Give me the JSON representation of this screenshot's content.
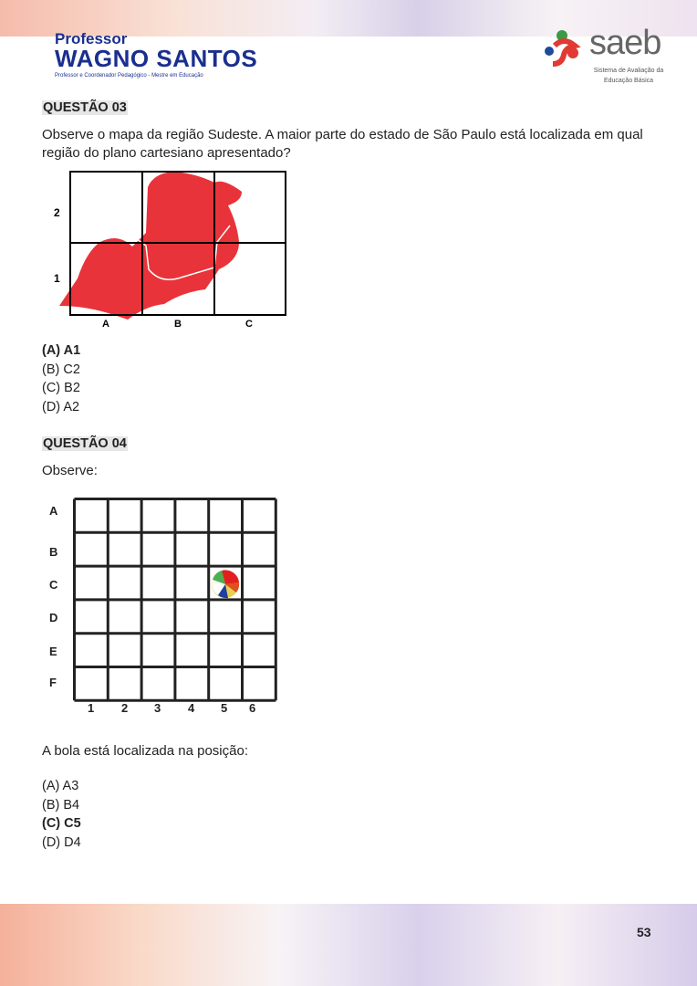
{
  "header": {
    "brand_small": "Professor",
    "brand_big": "WAGNO SANTOS",
    "brand_sub": "Professor e Coordenador Pedagógico - Mestre em Educação",
    "saeb": "saeb",
    "saeb_sub": "Sistema de Avaliação da Educação Básica"
  },
  "q3": {
    "title": "QUESTÃO 03",
    "text": "Observe o mapa da região Sudeste. A maior parte do estado de São Paulo está localizada em qual região do plano cartesiano apresentado?",
    "rows": [
      "2",
      "1"
    ],
    "cols": [
      "A",
      "B",
      "C"
    ],
    "map_color": "#e8333a",
    "options": [
      {
        "label": "(A) A1",
        "correct": true
      },
      {
        "label": "(B) C2",
        "correct": false
      },
      {
        "label": "(C) B2",
        "correct": false
      },
      {
        "label": "(D) A2",
        "correct": false
      }
    ]
  },
  "q4": {
    "title": "QUESTÃO 04",
    "intro": "Observe:",
    "rows": [
      "A",
      "B",
      "C",
      "D",
      "E",
      "F"
    ],
    "cols": [
      "1",
      "2",
      "3",
      "4",
      "5",
      "6"
    ],
    "ball_position": "C5",
    "text": "A bola está localizada na posição:",
    "options": [
      {
        "label": "(A) A3",
        "correct": false
      },
      {
        "label": "(B) B4",
        "correct": false
      },
      {
        "label": "(C) C5",
        "correct": true
      },
      {
        "label": "(D) D4",
        "correct": false
      }
    ]
  },
  "page_number": "53"
}
